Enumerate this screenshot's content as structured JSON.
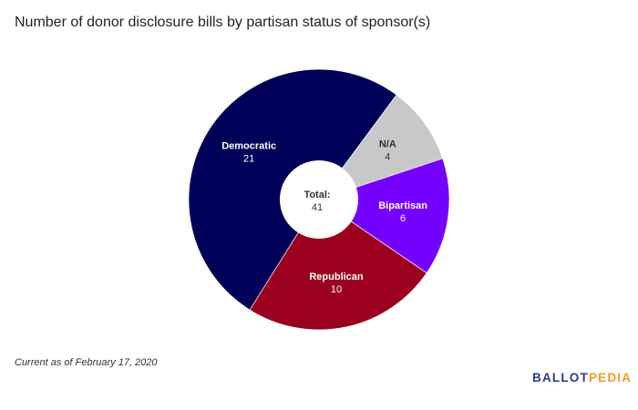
{
  "title": "Number of donor disclosure bills by partisan status of sponsor(s)",
  "note": "Current as of February 17, 2020",
  "logo": {
    "part1": "BALLOT",
    "part2": "PEDIA"
  },
  "chart_data": {
    "type": "pie",
    "donut": true,
    "title": "Number of donor disclosure bills by partisan status of sponsor(s)",
    "center_label": "Total:",
    "center_value": "41",
    "slices": [
      {
        "label": "N/A",
        "value": 4,
        "color": "#c8c8c8",
        "text_color": "#333333"
      },
      {
        "label": "Bipartisan",
        "value": 6,
        "color": "#7400ff",
        "text_color": "#ffffff"
      },
      {
        "label": "Republican",
        "value": 10,
        "color": "#9b001f",
        "text_color": "#ffffff"
      },
      {
        "label": "Democratic",
        "value": 21,
        "color": "#000058",
        "text_color": "#ffffff"
      }
    ],
    "start_angle_deg": 36.5,
    "direction": "clockwise"
  }
}
